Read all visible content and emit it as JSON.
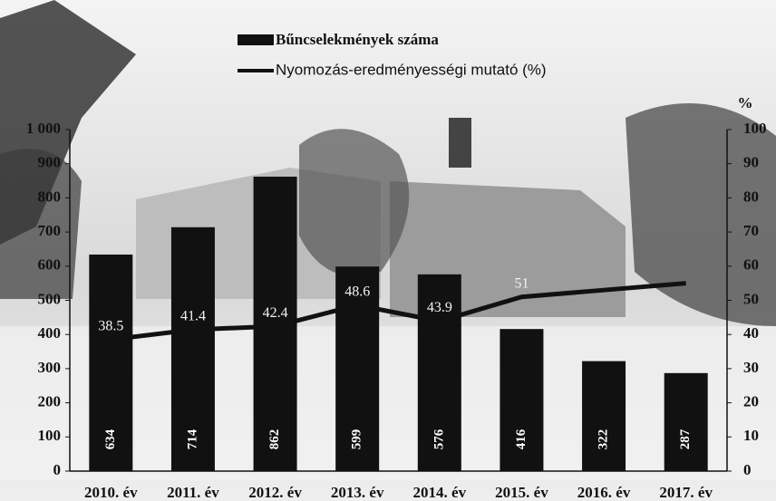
{
  "chart_data": {
    "type": "bar_line",
    "legend": [
      "Bűncselekmények száma",
      "Nyomozás-eredményességi mutató (%)"
    ],
    "y2_label": "%",
    "categories": [
      "2010. év",
      "2011. év",
      "2012. év",
      "2013. év",
      "2014. év",
      "2015. év",
      "2016. év",
      "2017. év"
    ],
    "series": [
      {
        "name": "Bűncselekmények száma",
        "kind": "bar",
        "color": "#111111",
        "values": [
          634,
          714,
          862,
          599,
          576,
          416,
          322,
          287
        ]
      },
      {
        "name": "Nyomozás-eredményességi mutató (%)",
        "kind": "line",
        "axis": "y2",
        "color": "#111111",
        "values": [
          38.5,
          41.4,
          42.4,
          48.6,
          43.9,
          51,
          53,
          55
        ],
        "value_labels": [
          "38.5",
          "41.4",
          "42.4",
          "48.6",
          "43.9",
          "51",
          null,
          null
        ]
      }
    ],
    "ylim": [
      0,
      1000
    ],
    "yticks": [
      0,
      100,
      200,
      300,
      400,
      500,
      600,
      700,
      800,
      900,
      {
        "value": 1000,
        "label": "1 000"
      }
    ],
    "y2lim": [
      0,
      100
    ],
    "y2ticks": [
      0,
      10,
      20,
      30,
      40,
      50,
      60,
      70,
      80,
      90,
      100
    ]
  }
}
